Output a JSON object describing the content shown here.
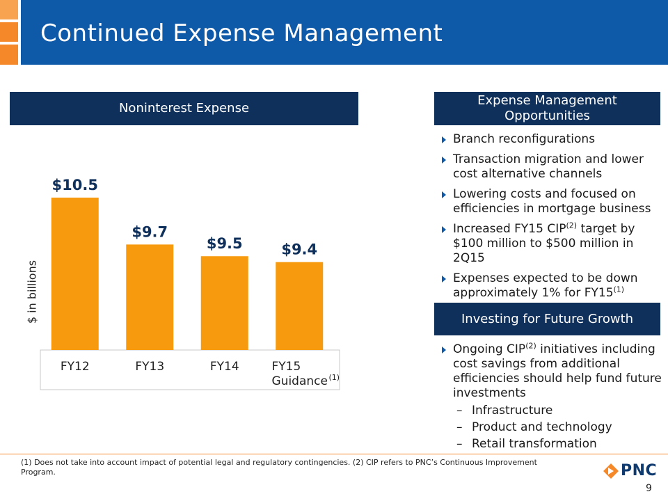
{
  "header": {
    "title": "Continued Expense Management"
  },
  "left_panel": {
    "heading": "Noninterest Expense"
  },
  "chart_data": {
    "type": "bar",
    "categories": [
      "FY12",
      "FY13",
      "FY14",
      "FY15 Guidance"
    ],
    "values": [
      10.5,
      9.7,
      9.5,
      9.4
    ],
    "data_labels": [
      "$10.5",
      "$9.7",
      "$9.5",
      "$9.4"
    ],
    "category_footnotes": [
      "",
      "",
      "",
      "(1)"
    ],
    "ylabel": "$ in billions",
    "title": "Noninterest Expense",
    "ylim": [
      7.9,
      10.5
    ],
    "bar_color": "#f79a0d",
    "label_color": "#10305c"
  },
  "right_panel": {
    "section1": {
      "heading": "Expense Management Opportunities",
      "bullets": [
        {
          "text": "Branch reconfigurations"
        },
        {
          "text": "Transaction migration and lower cost alternative channels"
        },
        {
          "text": "Lowering costs and focused on efficiencies in mortgage business"
        },
        {
          "pre": "Increased FY15 CIP",
          "sup": "(2)",
          "post": " target by $100 million to $500 million in 2Q15"
        },
        {
          "pre": "Expenses expected to be down approximately 1% for FY15",
          "sup": "(1)",
          "post": ""
        }
      ]
    },
    "section2": {
      "heading": "Investing for Future Growth",
      "bullets": [
        {
          "pre": "Ongoing CIP",
          "sup": "(2)",
          "post": " initiatives including cost savings from additional efficiencies should help fund future investments"
        }
      ],
      "sub_items": [
        "Infrastructure",
        "Product and technology",
        "Retail transformation"
      ]
    }
  },
  "footer": {
    "footnote": "(1) Does not take into account impact of potential legal and regulatory contingencies. (2) CIP refers to PNC’s Continuous Improvement Program.",
    "logo_text": "PNC",
    "page_number": "9"
  },
  "colors": {
    "brand_blue": "#0f5aa8",
    "navy": "#10305c",
    "orange": "#f5892a"
  }
}
